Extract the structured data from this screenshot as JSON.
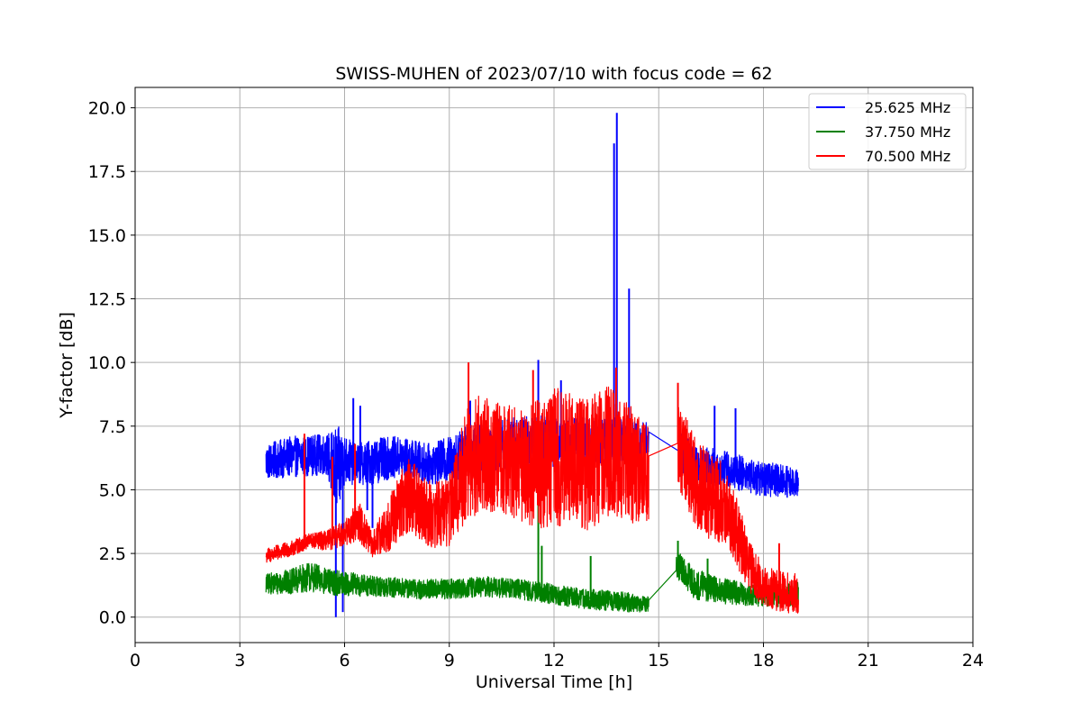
{
  "chart_data": {
    "type": "line",
    "title": "SWISS-MUHEN of 2023/07/10 with focus code = 62",
    "xlabel": "Universal Time [h]",
    "ylabel": "Y-factor [dB]",
    "xlim": [
      0,
      24
    ],
    "ylim": [
      -1.0,
      20.8
    ],
    "xticks": [
      0,
      3,
      6,
      9,
      12,
      15,
      18,
      21,
      24
    ],
    "xtick_labels": [
      "0",
      "3",
      "6",
      "9",
      "12",
      "15",
      "18",
      "21",
      "24"
    ],
    "yticks": [
      0,
      2.5,
      5,
      7.5,
      10,
      12.5,
      15,
      17.5,
      20
    ],
    "ytick_labels": [
      "0.0",
      "2.5",
      "5.0",
      "7.5",
      "10.0",
      "12.5",
      "15.0",
      "17.5",
      "20.0"
    ],
    "grid": true,
    "legend_position": "top-right",
    "series": [
      {
        "name": "25.625 MHz",
        "color": "#0000ff",
        "style": "noisy",
        "x": [
          3.75,
          4.5,
          5.5,
          5.7,
          5.9,
          6.0,
          6.3,
          6.8,
          7.5,
          8.5,
          9.0,
          9.5,
          10.5,
          11.5,
          12.5,
          13.5,
          13.75,
          13.85,
          14.2,
          14.7,
          15.5,
          15.6,
          16.0,
          17.0,
          18.0,
          19.0
        ],
        "y": [
          6.1,
          6.3,
          6.4,
          5.8,
          5.9,
          6.2,
          6.0,
          6.1,
          6.3,
          6.0,
          6.2,
          6.5,
          6.8,
          6.9,
          6.9,
          6.8,
          7.2,
          7.0,
          6.9,
          6.8,
          6.8,
          6.5,
          6.0,
          5.8,
          5.4,
          5.3
        ],
        "amplitude": [
          0.7,
          0.8,
          0.8,
          1.6,
          1.6,
          1.0,
          0.8,
          0.9,
          0.8,
          0.8,
          0.9,
          1.0,
          1.0,
          1.0,
          1.0,
          1.0,
          1.0,
          1.0,
          0.9,
          0.9,
          0.8,
          0.9,
          0.8,
          0.7,
          0.7,
          0.6
        ],
        "spikes": [
          {
            "x": 5.75,
            "y": 0.0
          },
          {
            "x": 5.95,
            "y": 0.2
          },
          {
            "x": 6.25,
            "y": 8.6
          },
          {
            "x": 6.45,
            "y": 8.3
          },
          {
            "x": 6.65,
            "y": 4.2
          },
          {
            "x": 6.8,
            "y": 3.5
          },
          {
            "x": 9.6,
            "y": 8.5
          },
          {
            "x": 11.55,
            "y": 10.1
          },
          {
            "x": 12.2,
            "y": 9.3
          },
          {
            "x": 13.72,
            "y": 18.6
          },
          {
            "x": 13.8,
            "y": 19.8
          },
          {
            "x": 14.15,
            "y": 12.9
          },
          {
            "x": 16.6,
            "y": 8.3
          },
          {
            "x": 17.2,
            "y": 8.2
          }
        ],
        "gaps": [
          [
            14.72,
            15.6
          ]
        ]
      },
      {
        "name": "37.750 MHz",
        "color": "#008000",
        "style": "noisy",
        "x": [
          3.75,
          4.5,
          5.0,
          5.5,
          6.0,
          7.0,
          8.0,
          9.0,
          10.0,
          11.0,
          11.5,
          12.0,
          13.0,
          14.0,
          14.7,
          15.6,
          16.0,
          17.0,
          18.0,
          19.0
        ],
        "y": [
          1.3,
          1.4,
          1.6,
          1.4,
          1.3,
          1.2,
          1.1,
          1.1,
          1.2,
          1.1,
          1.0,
          0.9,
          0.7,
          0.6,
          0.5,
          2.0,
          1.3,
          1.0,
          0.8,
          0.9
        ],
        "amplitude": [
          0.4,
          0.5,
          0.6,
          0.5,
          0.5,
          0.4,
          0.4,
          0.4,
          0.4,
          0.4,
          0.4,
          0.4,
          0.4,
          0.4,
          0.3,
          0.6,
          0.6,
          0.5,
          0.4,
          0.5
        ],
        "spikes": [
          {
            "x": 11.55,
            "y": 5.5
          },
          {
            "x": 11.65,
            "y": 2.8
          },
          {
            "x": 13.05,
            "y": 2.4
          },
          {
            "x": 15.55,
            "y": 3.0
          },
          {
            "x": 16.4,
            "y": 2.3
          }
        ],
        "gaps": [
          [
            14.72,
            15.5
          ]
        ]
      },
      {
        "name": "70.500 MHz",
        "color": "#ff0000",
        "style": "noisy",
        "x": [
          3.75,
          4.5,
          5.0,
          5.5,
          6.0,
          6.4,
          6.8,
          7.2,
          7.8,
          8.5,
          9.0,
          9.5,
          10.0,
          10.5,
          11.0,
          11.5,
          12.0,
          12.5,
          13.0,
          13.5,
          14.0,
          14.7,
          15.5,
          15.8,
          16.2,
          16.8,
          17.2,
          17.6,
          18.0,
          18.5,
          19.0
        ],
        "y": [
          2.4,
          2.7,
          3.0,
          3.0,
          3.3,
          3.8,
          2.8,
          3.5,
          4.8,
          4.0,
          4.2,
          6.0,
          6.5,
          6.2,
          6.0,
          6.1,
          6.3,
          6.2,
          6.0,
          6.5,
          6.2,
          5.5,
          7.0,
          6.0,
          5.0,
          4.5,
          3.5,
          2.0,
          1.2,
          1.0,
          0.9
        ],
        "amplitude": [
          0.3,
          0.3,
          0.3,
          0.4,
          0.5,
          0.8,
          0.5,
          1.0,
          1.5,
          1.3,
          1.4,
          2.2,
          2.4,
          2.2,
          2.2,
          2.6,
          2.8,
          2.6,
          2.6,
          2.6,
          2.4,
          2.0,
          1.6,
          1.8,
          1.8,
          1.6,
          1.4,
          1.0,
          0.8,
          0.8,
          0.8
        ],
        "spikes": [
          {
            "x": 4.85,
            "y": 7.2
          },
          {
            "x": 5.65,
            "y": 6.3
          },
          {
            "x": 6.3,
            "y": 6.8
          },
          {
            "x": 9.55,
            "y": 10.0
          },
          {
            "x": 11.4,
            "y": 9.7
          },
          {
            "x": 13.78,
            "y": 9.8
          },
          {
            "x": 15.55,
            "y": 9.2
          },
          {
            "x": 18.45,
            "y": 2.9
          }
        ],
        "gaps": [
          [
            14.72,
            15.55
          ]
        ]
      }
    ]
  }
}
